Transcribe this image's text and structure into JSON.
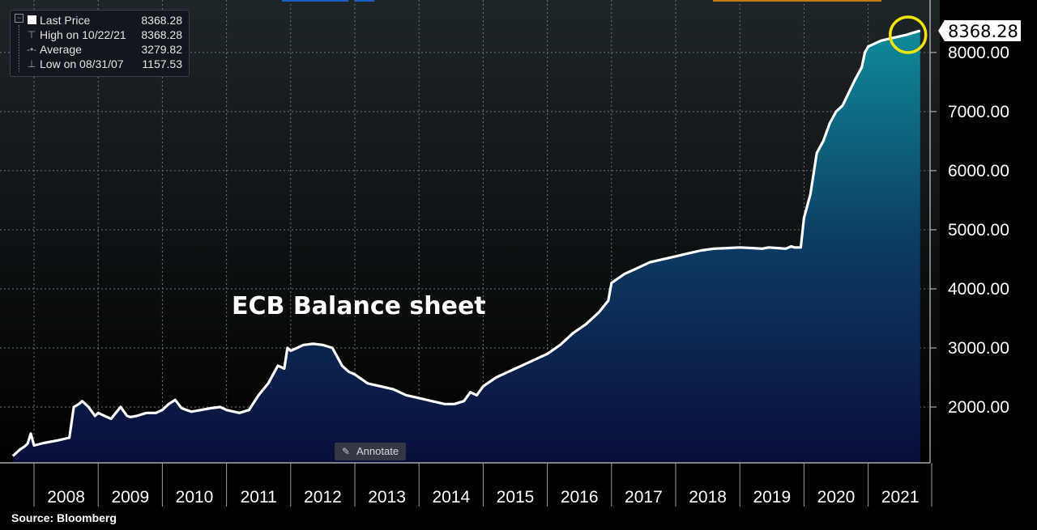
{
  "legend": {
    "rows": [
      {
        "label": "Last Price",
        "value": "8368.28",
        "icon": "white-square-icon"
      },
      {
        "label": "High on 10/22/21",
        "value": "8368.28",
        "icon": "high-marker-icon"
      },
      {
        "label": "Average",
        "value": "3279.82",
        "icon": "average-line-icon"
      },
      {
        "label": "Low on 08/31/07",
        "value": "1157.53",
        "icon": "low-marker-icon"
      }
    ]
  },
  "annotate_label": "Annotate",
  "source": "Source:  Bloomberg",
  "last_price_label": "8368.28",
  "colors": {
    "line": "#ffffff",
    "area_top": "#0f8a9a",
    "area_bottom": "#0a0d3a",
    "highlight_circle": "#f2e600",
    "grid": "#6e7780",
    "axis_text": "#ffffff",
    "background_top": "#1e2528",
    "background_bottom": "#000000"
  },
  "chart_data": {
    "type": "area",
    "title": "ECB Balance sheet",
    "xlabel": "",
    "ylabel": "",
    "x_tick_labels": [
      "2008",
      "2009",
      "2010",
      "2011",
      "2012",
      "2013",
      "2014",
      "2015",
      "2016",
      "2017",
      "2018",
      "2019",
      "2020",
      "2021"
    ],
    "y_tick_labels": [
      "2000.00",
      "3000.00",
      "4000.00",
      "5000.00",
      "6000.00",
      "7000.00",
      "8000.00"
    ],
    "y_ticks": [
      2000,
      3000,
      4000,
      5000,
      6000,
      7000,
      8000
    ],
    "ylim": [
      1000,
      8800
    ],
    "xlim": [
      2007.6,
      2022.0
    ],
    "grid": true,
    "series": [
      {
        "x": [
          2007.67,
          2007.72,
          2007.78,
          2007.85,
          2007.9,
          2007.95,
          2008.0,
          2008.15,
          2008.35,
          2008.55,
          2008.62,
          2008.7,
          2008.75,
          2008.85,
          2008.95,
          2009.0,
          2009.1,
          2009.2,
          2009.35,
          2009.45,
          2009.5,
          2009.6,
          2009.75,
          2009.9,
          2010.0,
          2010.1,
          2010.2,
          2010.3,
          2010.38,
          2010.45,
          2010.6,
          2010.75,
          2010.9,
          2011.0,
          2011.2,
          2011.35,
          2011.5,
          2011.65,
          2011.8,
          2011.9,
          2011.95,
          2012.0,
          2012.1,
          2012.2,
          2012.35,
          2012.5,
          2012.65,
          2012.8,
          2012.9,
          2013.0,
          2013.2,
          2013.4,
          2013.6,
          2013.8,
          2014.0,
          2014.2,
          2014.4,
          2014.55,
          2014.7,
          2014.8,
          2014.9,
          2015.0,
          2015.2,
          2015.4,
          2015.6,
          2015.8,
          2016.0,
          2016.2,
          2016.4,
          2016.6,
          2016.8,
          2016.95,
          2017.0,
          2017.2,
          2017.4,
          2017.6,
          2017.8,
          2018.0,
          2018.2,
          2018.4,
          2018.6,
          2018.8,
          2019.0,
          2019.2,
          2019.35,
          2019.45,
          2019.6,
          2019.72,
          2019.8,
          2019.85,
          2019.95,
          2020.0,
          2020.1,
          2020.2,
          2020.3,
          2020.4,
          2020.5,
          2020.6,
          2020.8,
          2020.9,
          2020.95,
          2021.0,
          2021.2,
          2021.4,
          2021.6,
          2021.75,
          2021.81
        ],
        "y": [
          1170,
          1220,
          1280,
          1330,
          1380,
          1550,
          1350,
          1390,
          1430,
          1480,
          2000,
          2050,
          2100,
          2000,
          1850,
          1900,
          1850,
          1800,
          2000,
          1850,
          1830,
          1850,
          1900,
          1900,
          1950,
          2050,
          2120,
          1980,
          1950,
          1920,
          1950,
          1980,
          2000,
          1950,
          1900,
          1950,
          2200,
          2400,
          2700,
          2650,
          3000,
          2950,
          3000,
          3050,
          3070,
          3050,
          3000,
          2700,
          2600,
          2550,
          2400,
          2350,
          2300,
          2200,
          2150,
          2100,
          2050,
          2050,
          2100,
          2250,
          2200,
          2350,
          2500,
          2600,
          2700,
          2800,
          2900,
          3050,
          3250,
          3400,
          3600,
          3800,
          4100,
          4250,
          4350,
          4450,
          4500,
          4550,
          4600,
          4650,
          4680,
          4690,
          4700,
          4690,
          4680,
          4700,
          4690,
          4680,
          4720,
          4700,
          4700,
          5200,
          5600,
          6300,
          6500,
          6800,
          7000,
          7100,
          7550,
          7750,
          8000,
          8100,
          8200,
          8250,
          8300,
          8350,
          8368.28
        ]
      }
    ],
    "last_value": 8368.28,
    "high": {
      "date": "10/22/21",
      "value": 8368.28
    },
    "average": 3279.82,
    "low": {
      "date": "08/31/07",
      "value": 1157.53
    }
  }
}
